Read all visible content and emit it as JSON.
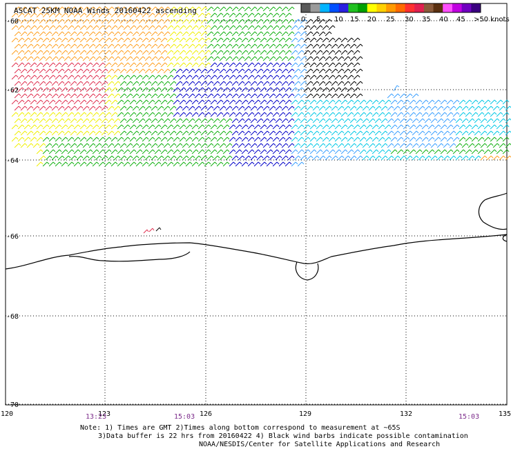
{
  "title": "ASCAT 25KM NOAA Winds 20160422 ascending",
  "legend": {
    "colors": [
      "#5a5a5a",
      "#9a9a9a",
      "#00b4ff",
      "#0050ff",
      "#2a20e0",
      "#20c020",
      "#00a000",
      "#ffff00",
      "#ffd000",
      "#ff9a00",
      "#ff6a00",
      "#ff3030",
      "#e02050",
      "#8a5a3a",
      "#5a3010",
      "#ff50ff",
      "#c000e0",
      "#7000c0",
      "#3a0080"
    ],
    "labels": [
      "0",
      "5",
      "10",
      "15",
      "20",
      "25",
      "30",
      "35",
      "40",
      "45",
      ">50 knots"
    ]
  },
  "lat_labels": [
    "-60",
    "-62",
    "-64",
    "-66",
    "-68",
    "-70"
  ],
  "lon_labels": [
    "120",
    "123",
    "126",
    "129",
    "132",
    "135"
  ],
  "times": [
    "13:23",
    "15:03",
    "15:03"
  ],
  "notes": [
    "Note: 1) Times are GMT 2)Times along bottom correspond to measurement at ~65S",
    "3)Data buffer is 22 hrs from 20160422 4) Black wind barbs indicate possible contamination",
    "NOAA/NESDIS/Center for Satellite Applications and Research"
  ],
  "wind_colors": {
    "black": "#000000",
    "cyan": "#00c8e6",
    "lightblue": "#3aa0ff",
    "blue": "#0000c8",
    "green": "#10b010",
    "yellow": "#f0f000",
    "orange": "#ffa020",
    "red": "#e03050"
  }
}
